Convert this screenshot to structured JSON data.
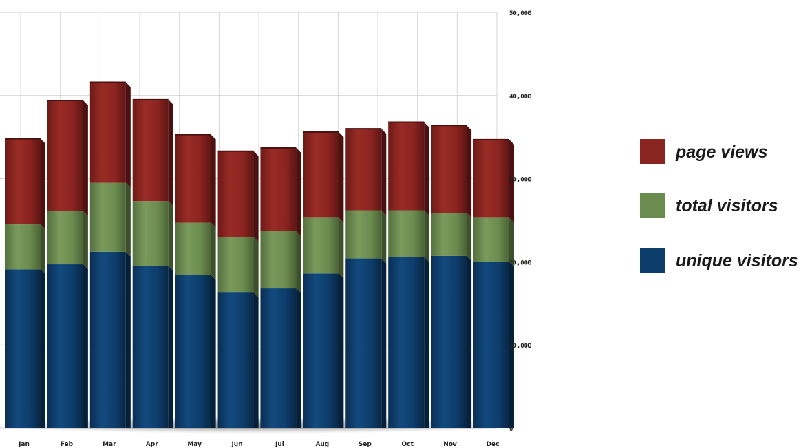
{
  "chart_data": {
    "type": "bar",
    "stacked": true,
    "categories": [
      "Jan",
      "Feb",
      "Mar",
      "Apr",
      "May",
      "Jun",
      "Jul",
      "Aug",
      "Sep",
      "Oct",
      "Nov",
      "Dec"
    ],
    "series": [
      {
        "name": "unique visitors",
        "color": "#0d3d6b",
        "values": [
          19100,
          19700,
          21200,
          19500,
          18400,
          16300,
          16800,
          18600,
          20400,
          20600,
          20700,
          20000
        ]
      },
      {
        "name": "total visitors",
        "color": "#6b8c4f",
        "values": [
          5400,
          6400,
          8300,
          7800,
          6300,
          6700,
          6900,
          6700,
          5800,
          5600,
          5200,
          5300
        ]
      },
      {
        "name": "page views",
        "color": "#8a2420",
        "values": [
          10300,
          13300,
          12100,
          12200,
          10600,
          10300,
          10000,
          10300,
          9800,
          10600,
          10500,
          9400
        ]
      }
    ],
    "yticks": [
      "0",
      "10,000",
      "20,000",
      "30,000",
      "40,000",
      "50,000"
    ],
    "ylim": [
      0,
      50000
    ],
    "grid": true,
    "legend": "right"
  }
}
